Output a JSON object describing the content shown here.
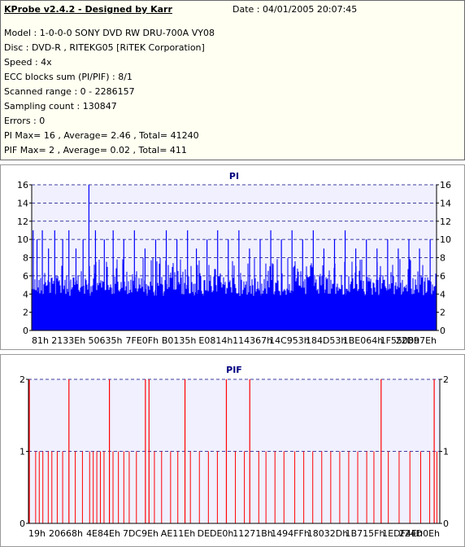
{
  "header": {
    "title": "KProbe v2.4.2 - Designed by Karr",
    "date": "Date : 04/01/2005 20:07:45"
  },
  "info_lines": [
    "Model : 1-0-0-0 SONY    DVD RW DRU-700A  VY08",
    "Disc : DVD-R , RITEKG05 [RiTEK Corporation]",
    "Speed : 4x",
    "ECC blocks sum (PI/PIF) : 8/1",
    "Scanned range : 0 - 2286157",
    "Sampling count : 130847",
    "Errors : 0",
    "PI Max= 16 , Average= 2.46 , Total= 41240",
    "PIF Max= 2 , Average= 0.02 , Total= 411"
  ],
  "colors": {
    "pi_bars": "#0000ff",
    "pif_bars": "#ff0000",
    "plot_bg": "#f0f0ff",
    "title": "#000080",
    "info_bg": "#fffff2"
  },
  "chart_data": [
    {
      "type": "bar",
      "title": "PI",
      "ylim": [
        0,
        16
      ],
      "yticks": [
        0,
        2,
        4,
        6,
        8,
        10,
        12,
        14,
        16
      ],
      "x_range": [
        0,
        2286157
      ],
      "x_tick_labels": [
        "81h",
        "2133Eh",
        "50635h",
        "7FE0Fh",
        "B0135h",
        "E0814h",
        "114367h",
        "14C953h",
        "184D53h",
        "1BE064h",
        "1F5508h",
        "22D97Eh"
      ],
      "grid": true,
      "baseline": 6,
      "peak": {
        "x": 323125,
        "value": 16
      },
      "spikes": [
        {
          "x": 8000,
          "value": 11
        },
        {
          "x": 30000,
          "value": 10
        },
        {
          "x": 60000,
          "value": 11
        },
        {
          "x": 95000,
          "value": 9
        },
        {
          "x": 130000,
          "value": 11
        },
        {
          "x": 175000,
          "value": 10
        },
        {
          "x": 210000,
          "value": 11
        },
        {
          "x": 250000,
          "value": 9
        },
        {
          "x": 290000,
          "value": 10
        },
        {
          "x": 323125,
          "value": 16
        },
        {
          "x": 360000,
          "value": 11
        },
        {
          "x": 410000,
          "value": 10
        },
        {
          "x": 460000,
          "value": 11
        },
        {
          "x": 520000,
          "value": 10
        },
        {
          "x": 580000,
          "value": 11
        },
        {
          "x": 640000,
          "value": 9
        },
        {
          "x": 700000,
          "value": 10
        },
        {
          "x": 760000,
          "value": 11
        },
        {
          "x": 820000,
          "value": 10
        },
        {
          "x": 880000,
          "value": 11
        },
        {
          "x": 930000,
          "value": 9
        },
        {
          "x": 990000,
          "value": 10
        },
        {
          "x": 1050000,
          "value": 11
        },
        {
          "x": 1110000,
          "value": 10
        },
        {
          "x": 1170000,
          "value": 11
        },
        {
          "x": 1230000,
          "value": 9
        },
        {
          "x": 1290000,
          "value": 10
        },
        {
          "x": 1350000,
          "value": 11
        },
        {
          "x": 1410000,
          "value": 10
        },
        {
          "x": 1470000,
          "value": 11
        },
        {
          "x": 1530000,
          "value": 10
        },
        {
          "x": 1590000,
          "value": 11
        },
        {
          "x": 1650000,
          "value": 9
        },
        {
          "x": 1710000,
          "value": 10
        },
        {
          "x": 1770000,
          "value": 11
        },
        {
          "x": 1830000,
          "value": 9
        },
        {
          "x": 1890000,
          "value": 10
        },
        {
          "x": 1950000,
          "value": 9
        },
        {
          "x": 2010000,
          "value": 10
        },
        {
          "x": 2070000,
          "value": 9
        },
        {
          "x": 2130000,
          "value": 10
        },
        {
          "x": 2190000,
          "value": 9
        },
        {
          "x": 2250000,
          "value": 10
        }
      ]
    },
    {
      "type": "bar",
      "title": "PIF",
      "ylim": [
        0,
        2
      ],
      "yticks": [
        0,
        1,
        2
      ],
      "x_range": [
        0,
        2286157
      ],
      "x_tick_labels": [
        "19h",
        "20668h",
        "4E84Eh",
        "7DC9Eh",
        "AE11Eh",
        "DEDE0h",
        "11271Bh",
        "1494FFh",
        "18032Dh",
        "1B715Fh",
        "1EDF4Eh",
        "224D0Eh"
      ],
      "grid": true,
      "twos": [
        5000,
        225000,
        450000,
        650000,
        670000,
        870000,
        1100000,
        1230000,
        1960000,
        2255000
      ],
      "ones": [
        40000,
        60000,
        80000,
        110000,
        130000,
        160000,
        190000,
        260000,
        300000,
        340000,
        360000,
        380000,
        400000,
        420000,
        470000,
        500000,
        530000,
        560000,
        600000,
        700000,
        740000,
        790000,
        830000,
        900000,
        950000,
        1000000,
        1050000,
        1150000,
        1200000,
        1280000,
        1320000,
        1370000,
        1420000,
        1480000,
        1530000,
        1580000,
        1630000,
        1680000,
        1730000,
        1780000,
        1830000,
        1880000,
        1920000,
        2000000,
        2060000,
        2120000,
        2180000,
        2230000,
        2270000
      ]
    }
  ]
}
